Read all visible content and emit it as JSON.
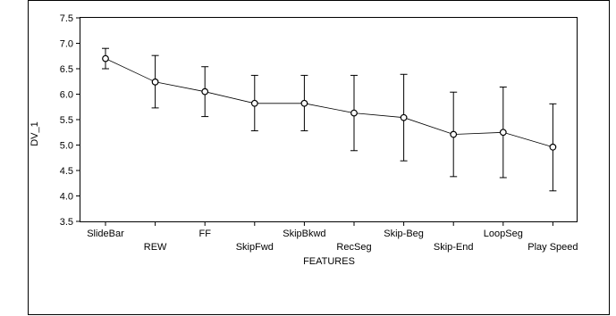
{
  "chart_data": {
    "type": "line",
    "title": "",
    "xlabel": "FEATURES",
    "ylabel": "DV_1",
    "ylim": [
      3.5,
      7.5
    ],
    "yticks": [
      "7.5",
      "7.0",
      "6.5",
      "6.0",
      "5.5",
      "5.0",
      "4.5",
      "4.0",
      "3.5"
    ],
    "grid": false,
    "categories": [
      "SlideBar",
      "REW",
      "FF",
      "SkipFwd",
      "SkipBkwd",
      "RecSeg",
      "Skip-Beg",
      "Skip-End",
      "LoopSeg",
      "Play Speed"
    ],
    "series": [
      {
        "values": [
          6.7,
          6.24,
          6.05,
          5.82,
          5.82,
          5.63,
          5.54,
          5.21,
          5.25,
          4.96
        ],
        "error_low": [
          6.5,
          5.73,
          5.56,
          5.28,
          5.28,
          4.89,
          4.69,
          4.38,
          4.36,
          4.1
        ],
        "error_high": [
          6.9,
          6.76,
          6.54,
          6.37,
          6.37,
          6.37,
          6.39,
          6.04,
          6.14,
          5.81
        ]
      }
    ]
  }
}
